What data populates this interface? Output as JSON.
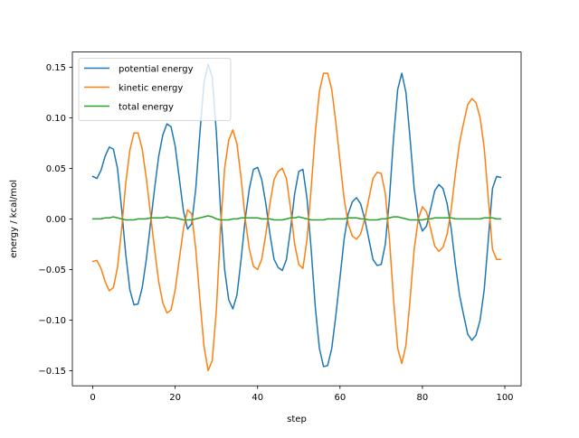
{
  "chart_data": {
    "type": "line",
    "title": "",
    "xlabel": "step",
    "ylabel": "energy / kcal/mol",
    "xlim": [
      -4.95,
      103.95
    ],
    "ylim": [
      -0.165,
      0.165
    ],
    "xticks": [
      0,
      20,
      40,
      60,
      80,
      100
    ],
    "xtick_labels": [
      "0",
      "20",
      "40",
      "60",
      "80",
      "100"
    ],
    "yticks": [
      -0.15,
      -0.1,
      -0.05,
      0.0,
      0.05,
      0.1,
      0.15
    ],
    "ytick_labels": [
      "−0.15",
      "−0.10",
      "−0.05",
      "0.00",
      "0.05",
      "0.10",
      "0.15"
    ],
    "grid": false,
    "legend_position": "top-left",
    "x": [
      0,
      1,
      2,
      3,
      4,
      5,
      6,
      7,
      8,
      9,
      10,
      11,
      12,
      13,
      14,
      15,
      16,
      17,
      18,
      19,
      20,
      21,
      22,
      23,
      24,
      25,
      26,
      27,
      28,
      29,
      30,
      31,
      32,
      33,
      34,
      35,
      36,
      37,
      38,
      39,
      40,
      41,
      42,
      43,
      44,
      45,
      46,
      47,
      48,
      49,
      50,
      51,
      52,
      53,
      54,
      55,
      56,
      57,
      58,
      59,
      60,
      61,
      62,
      63,
      64,
      65,
      66,
      67,
      68,
      69,
      70,
      71,
      72,
      73,
      74,
      75,
      76,
      77,
      78,
      79,
      80,
      81,
      82,
      83,
      84,
      85,
      86,
      87,
      88,
      89,
      90,
      91,
      92,
      93,
      94,
      95,
      96,
      97,
      98,
      99
    ],
    "series": [
      {
        "name": "potential energy",
        "color": "#1f77b4",
        "values": [
          0.042,
          0.04,
          0.048,
          0.062,
          0.071,
          0.069,
          0.05,
          0.01,
          -0.035,
          -0.07,
          -0.085,
          -0.084,
          -0.068,
          -0.04,
          -0.005,
          0.03,
          0.062,
          0.083,
          0.094,
          0.091,
          0.072,
          0.04,
          0.008,
          -0.01,
          -0.005,
          0.03,
          0.085,
          0.135,
          0.153,
          0.14,
          0.085,
          0.01,
          -0.05,
          -0.08,
          -0.089,
          -0.075,
          -0.04,
          0.0,
          0.03,
          0.049,
          0.051,
          0.039,
          0.015,
          -0.015,
          -0.04,
          -0.048,
          -0.051,
          -0.04,
          -0.01,
          0.025,
          0.047,
          0.049,
          0.02,
          -0.03,
          -0.087,
          -0.128,
          -0.146,
          -0.145,
          -0.128,
          -0.095,
          -0.058,
          -0.02,
          0.005,
          0.017,
          0.021,
          0.015,
          0.0,
          -0.02,
          -0.04,
          -0.046,
          -0.045,
          -0.025,
          0.02,
          0.08,
          0.128,
          0.144,
          0.125,
          0.08,
          0.03,
          0.0,
          -0.012,
          -0.007,
          0.01,
          0.028,
          0.034,
          0.03,
          0.015,
          -0.01,
          -0.045,
          -0.075,
          -0.095,
          -0.114,
          -0.12,
          -0.115,
          -0.1,
          -0.07,
          -0.02,
          0.03,
          0.042,
          0.041
        ]
      },
      {
        "name": "kinetic energy",
        "color": "#ff7f0e",
        "values": [
          -0.042,
          -0.041,
          -0.049,
          -0.062,
          -0.071,
          -0.068,
          -0.048,
          -0.01,
          0.035,
          0.068,
          0.085,
          0.085,
          0.069,
          0.04,
          0.005,
          -0.03,
          -0.062,
          -0.083,
          -0.093,
          -0.09,
          -0.07,
          -0.04,
          -0.01,
          0.009,
          0.005,
          -0.03,
          -0.08,
          -0.126,
          -0.15,
          -0.14,
          -0.09,
          -0.01,
          0.05,
          0.078,
          0.088,
          0.074,
          0.04,
          0.0,
          -0.03,
          -0.047,
          -0.05,
          -0.04,
          -0.015,
          0.015,
          0.039,
          0.047,
          0.05,
          0.04,
          0.01,
          -0.025,
          -0.045,
          -0.049,
          -0.02,
          0.03,
          0.085,
          0.126,
          0.144,
          0.144,
          0.128,
          0.095,
          0.057,
          0.02,
          -0.005,
          -0.017,
          -0.02,
          -0.015,
          0.0,
          0.02,
          0.04,
          0.046,
          0.045,
          0.025,
          -0.02,
          -0.08,
          -0.128,
          -0.143,
          -0.125,
          -0.08,
          -0.03,
          0.0,
          0.012,
          0.007,
          -0.01,
          -0.027,
          -0.032,
          -0.028,
          -0.015,
          0.01,
          0.045,
          0.075,
          0.095,
          0.113,
          0.119,
          0.115,
          0.1,
          0.07,
          0.02,
          -0.03,
          -0.04,
          -0.04
        ]
      },
      {
        "name": "total energy",
        "color": "#2ca02c",
        "values": [
          0.0,
          0.0,
          0.0,
          0.001,
          0.001,
          0.002,
          0.001,
          0.0,
          -0.001,
          -0.001,
          -0.001,
          0.0,
          0.0,
          0.0,
          0.001,
          0.001,
          0.001,
          0.001,
          0.002,
          0.001,
          0.001,
          0.0,
          -0.001,
          -0.001,
          -0.001,
          0.0,
          0.001,
          0.002,
          0.003,
          0.002,
          0.0,
          -0.001,
          -0.001,
          -0.001,
          0.0,
          0.0,
          0.001,
          0.001,
          0.001,
          0.001,
          0.001,
          0.0,
          0.0,
          0.0,
          -0.001,
          -0.001,
          -0.001,
          0.0,
          0.001,
          0.001,
          0.002,
          0.001,
          0.0,
          -0.001,
          -0.001,
          -0.001,
          -0.001,
          0.0,
          0.0,
          0.0,
          0.0,
          0.0,
          0.001,
          0.001,
          0.001,
          0.0,
          0.0,
          -0.001,
          -0.001,
          -0.001,
          0.0,
          0.0,
          0.001,
          0.002,
          0.002,
          0.001,
          0.0,
          -0.001,
          -0.001,
          -0.001,
          -0.001,
          0.0,
          0.0,
          0.001,
          0.001,
          0.001,
          0.001,
          0.001,
          0.0,
          0.0,
          0.0,
          0.0,
          0.0,
          0.0,
          0.0,
          0.001,
          0.001,
          0.001,
          0.0,
          0.0
        ]
      }
    ]
  }
}
